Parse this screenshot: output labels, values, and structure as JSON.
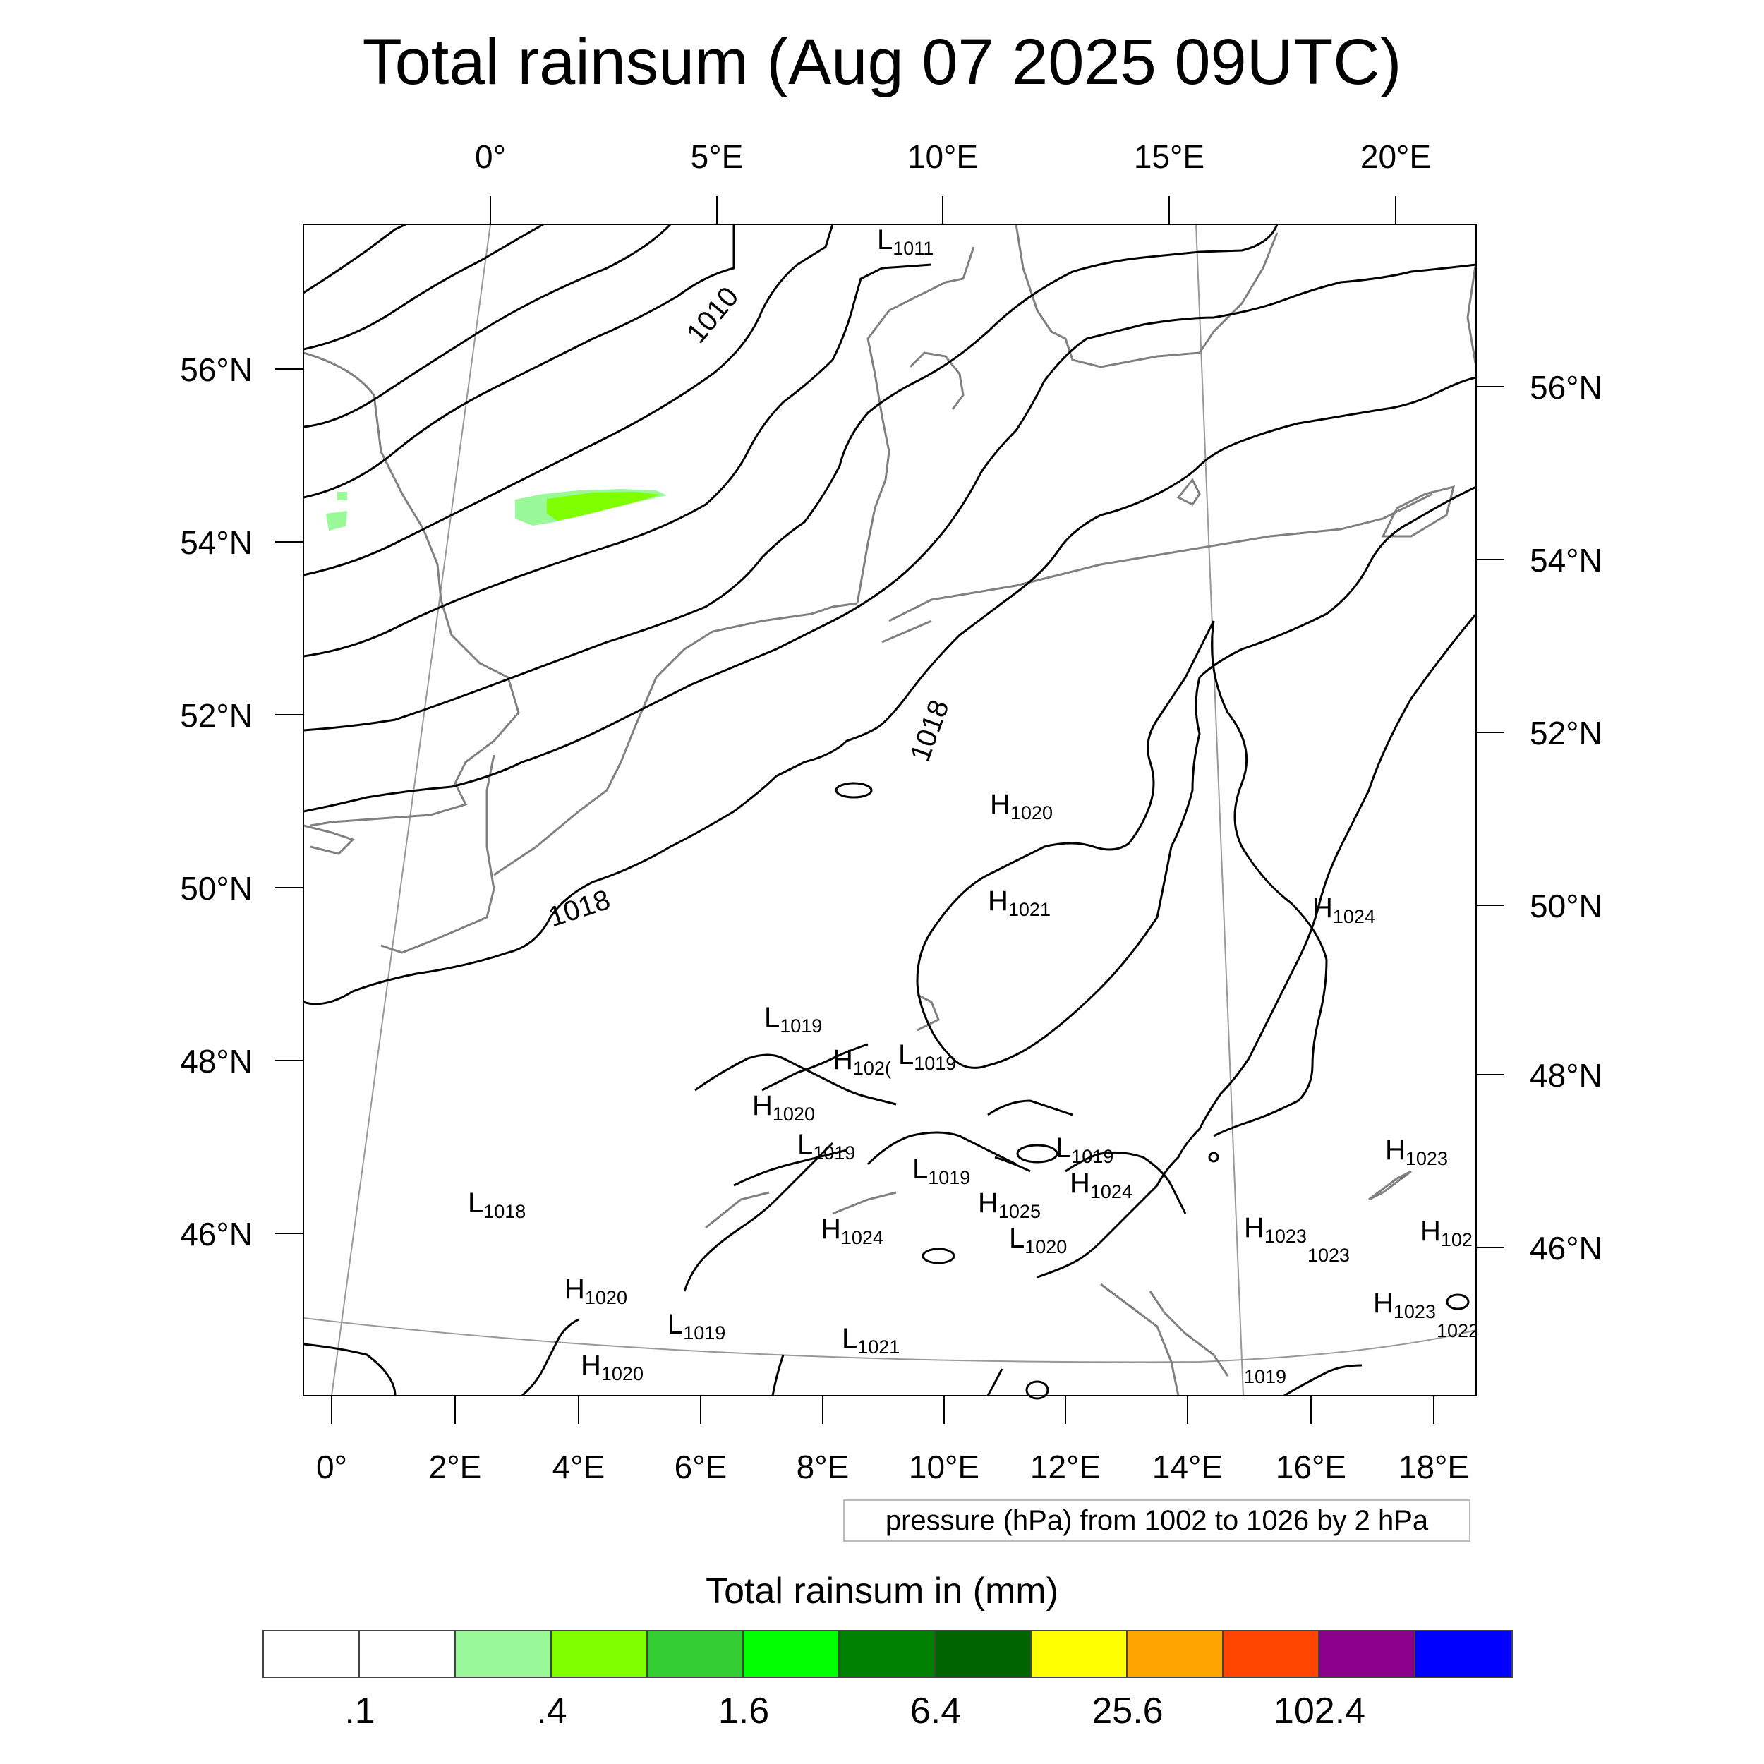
{
  "title": "Total rainsum (Aug 07 2025 09UTC)",
  "axes": {
    "top_lon": [
      "0°",
      "5°E",
      "10°E",
      "15°E",
      "20°E"
    ],
    "bottom_lon": [
      "0°",
      "2°E",
      "4°E",
      "6°E",
      "8°E",
      "10°E",
      "12°E",
      "14°E",
      "16°E",
      "18°E"
    ],
    "left_lat": [
      "56°N",
      "54°N",
      "52°N",
      "50°N",
      "48°N",
      "46°N"
    ],
    "right_lat": [
      "56°N",
      "54°N",
      "52°N",
      "50°N",
      "48°N",
      "46°N"
    ]
  },
  "isobar_labels": [
    "1010",
    "1018",
    "1018"
  ],
  "pressure_markers": [
    {
      "letter": "L",
      "value": "1011"
    },
    {
      "letter": "H",
      "value": "1020"
    },
    {
      "letter": "H",
      "value": "1021"
    },
    {
      "letter": "H",
      "value": "1024"
    },
    {
      "letter": "L",
      "value": "1019"
    },
    {
      "letter": "H",
      "value": "102("
    },
    {
      "letter": "L",
      "value": "1019"
    },
    {
      "letter": "H",
      "value": "1020"
    },
    {
      "letter": "L",
      "value": "1019"
    },
    {
      "letter": "L",
      "value": "1019"
    },
    {
      "letter": "L",
      "value": "1019"
    },
    {
      "letter": "H",
      "value": "1024"
    },
    {
      "letter": "H",
      "value": "1023"
    },
    {
      "letter": "L",
      "value": "1018"
    },
    {
      "letter": "H",
      "value": "1025"
    },
    {
      "letter": "H",
      "value": "1024"
    },
    {
      "letter": "L",
      "value": "1020"
    },
    {
      "letter": "H",
      "value": "1023"
    },
    {
      "letter": "",
      "value": "1023"
    },
    {
      "letter": "H",
      "value": "102"
    },
    {
      "letter": "H",
      "value": "1020"
    },
    {
      "letter": "L",
      "value": "1019"
    },
    {
      "letter": "L",
      "value": "1021"
    },
    {
      "letter": "H",
      "value": "1020"
    },
    {
      "letter": "H",
      "value": "1023"
    },
    {
      "letter": "",
      "value": "1022"
    },
    {
      "letter": "",
      "value": "1019"
    }
  ],
  "pressure_note": "pressure (hPa) from 1002 to 1026 by 2 hPa",
  "legend": {
    "title": "Total rainsum in (mm)",
    "colors": [
      "#ffffff",
      "#ffffff",
      "#99f999",
      "#80ff00",
      "#33cc33",
      "#00ff00",
      "#008000",
      "#006400",
      "#ffff00",
      "#ffa500",
      "#ff4500",
      "#8b008b",
      "#0000ff"
    ],
    "labels": [
      ".1",
      ".4",
      "1.6",
      "6.4",
      "25.6",
      "102.4"
    ]
  },
  "rain_colors": {
    "light": "#99f999",
    "medium": "#80ff00"
  }
}
